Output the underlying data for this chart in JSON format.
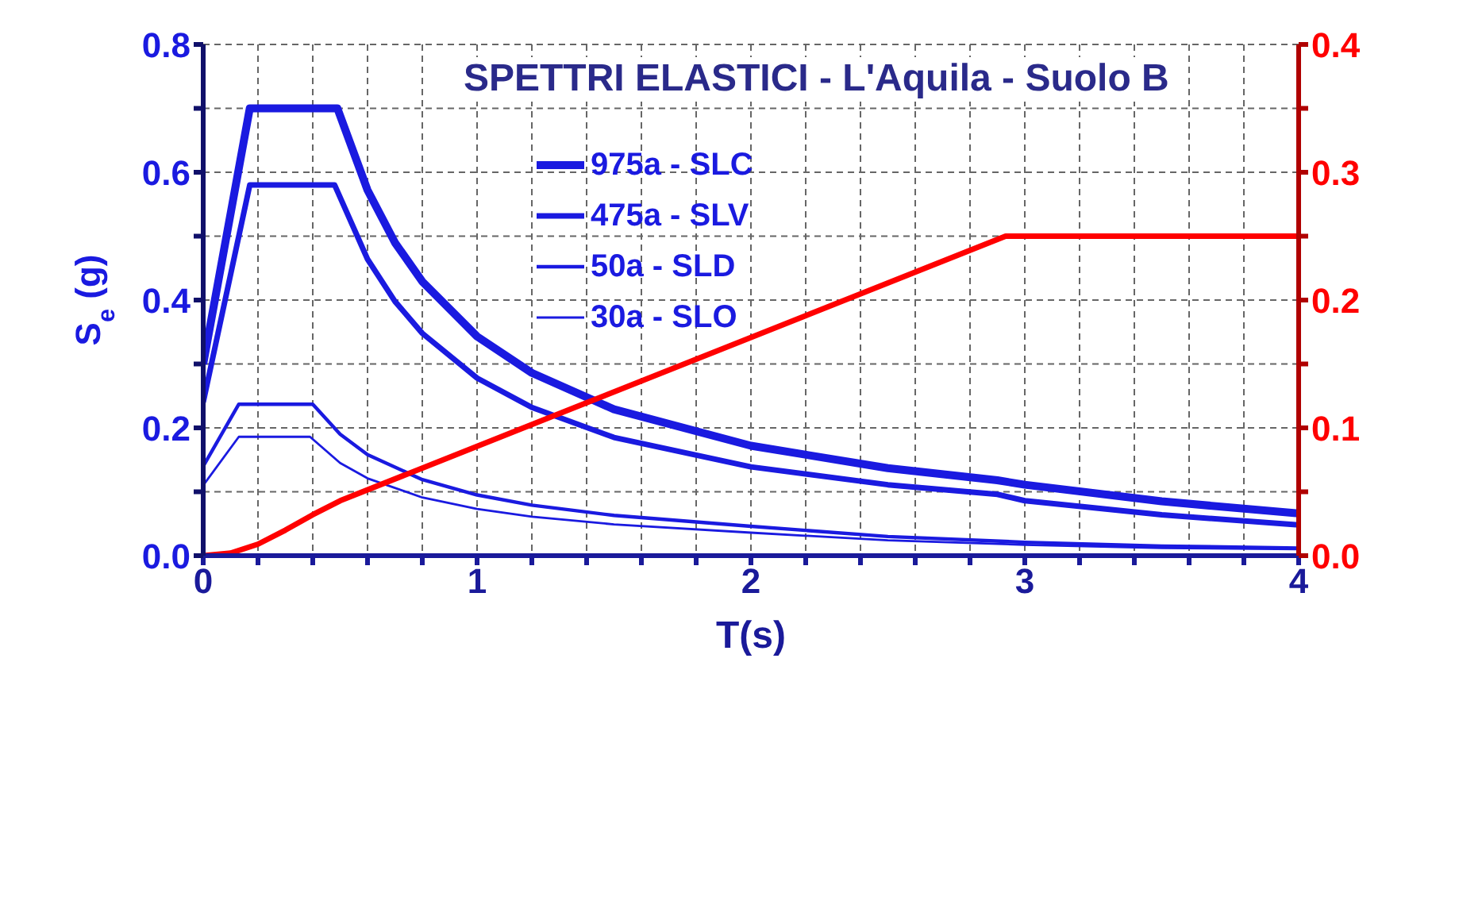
{
  "chart_data": {
    "type": "line",
    "title": "SPETTRI ELASTICI - L'Aquila  - Suolo B",
    "xlabel": "T(s)",
    "ylabel": "S$_{e}$ (g)",
    "xlim": [
      0,
      4
    ],
    "xticks": [
      {
        "value": 0,
        "label": "0"
      },
      {
        "value": 0.2,
        "label": null
      },
      {
        "value": 0.4,
        "label": null
      },
      {
        "value": 0.6,
        "label": null
      },
      {
        "value": 0.8,
        "label": null
      },
      {
        "value": 1,
        "label": "1"
      },
      {
        "value": 1.2,
        "label": null
      },
      {
        "value": 1.4,
        "label": null
      },
      {
        "value": 1.6,
        "label": null
      },
      {
        "value": 1.8,
        "label": null
      },
      {
        "value": 2,
        "label": "2"
      },
      {
        "value": 2.2,
        "label": null
      },
      {
        "value": 2.4,
        "label": null
      },
      {
        "value": 2.6,
        "label": null
      },
      {
        "value": 2.8,
        "label": null
      },
      {
        "value": 3,
        "label": "3"
      },
      {
        "value": 3.2,
        "label": null
      },
      {
        "value": 3.4,
        "label": null
      },
      {
        "value": 3.6,
        "label": null
      },
      {
        "value": 3.8,
        "label": null
      },
      {
        "value": 4,
        "label": "4"
      }
    ],
    "ylim": [
      0,
      0.8
    ],
    "yticks": [
      {
        "value": 0,
        "label": "0.0"
      },
      {
        "value": 0.1,
        "label": null
      },
      {
        "value": 0.2,
        "label": "0.2"
      },
      {
        "value": 0.3,
        "label": null
      },
      {
        "value": 0.4,
        "label": "0.4"
      },
      {
        "value": 0.5,
        "label": null
      },
      {
        "value": 0.6,
        "label": "0.6"
      },
      {
        "value": 0.7,
        "label": null
      },
      {
        "value": 0.8,
        "label": "0.8"
      }
    ],
    "y2lim": [
      0,
      0.4
    ],
    "y2ticks": [
      {
        "value": 0,
        "label": "0.0"
      },
      {
        "value": 0.05,
        "label": null
      },
      {
        "value": 0.1,
        "label": "0.1"
      },
      {
        "value": 0.15,
        "label": null
      },
      {
        "value": 0.2,
        "label": "0.2"
      },
      {
        "value": 0.25,
        "label": null
      },
      {
        "value": 0.3,
        "label": "0.3"
      },
      {
        "value": 0.35,
        "label": null
      },
      {
        "value": 0.4,
        "label": "0.4"
      }
    ],
    "grid": true,
    "legend": "top",
    "marker": "none",
    "line_style": "solid",
    "series": [
      {
        "name": "975a - SLC",
        "color": "#1a1ae0",
        "x": [
          0,
          0.17,
          0.49,
          0.6,
          0.7,
          0.8,
          1,
          1.2,
          1.5,
          2,
          2.5,
          2.9,
          3,
          3.5,
          4
        ],
        "values": [
          0.3,
          0.7,
          0.7,
          0.572,
          0.49,
          0.429,
          0.343,
          0.286,
          0.229,
          0.172,
          0.137,
          0.118,
          0.111,
          0.085,
          0.066
        ]
      },
      {
        "name": "475a - SLV",
        "color": "#1a1ae0",
        "x": [
          0,
          0.17,
          0.48,
          0.6,
          0.7,
          0.8,
          1,
          1.2,
          1.5,
          2,
          2.5,
          2.9,
          3,
          3.5,
          4
        ],
        "values": [
          0.24,
          0.58,
          0.58,
          0.464,
          0.398,
          0.348,
          0.278,
          0.232,
          0.185,
          0.139,
          0.111,
          0.096,
          0.086,
          0.064,
          0.048
        ]
      },
      {
        "name": "50a - SLD",
        "color": "#1a1ae0",
        "x": [
          0,
          0.13,
          0.4,
          0.5,
          0.6,
          0.8,
          1,
          1.2,
          1.5,
          2,
          2.5,
          3,
          3.5,
          4
        ],
        "values": [
          0.14,
          0.237,
          0.237,
          0.19,
          0.158,
          0.119,
          0.095,
          0.079,
          0.063,
          0.046,
          0.03,
          0.021,
          0.015,
          0.012
        ]
      },
      {
        "name": "30a - SLO",
        "color": "#1a1ae0",
        "x": [
          0,
          0.13,
          0.39,
          0.5,
          0.6,
          0.8,
          1,
          1.2,
          1.5,
          2,
          2.5,
          3,
          3.5,
          4
        ],
        "values": [
          0.11,
          0.186,
          0.186,
          0.145,
          0.121,
          0.091,
          0.073,
          0.061,
          0.049,
          0.036,
          0.024,
          0.017,
          0.012,
          0.01
        ]
      },
      {
        "color": "#ff0000",
        "axis": "y2",
        "x": [
          0,
          0.1,
          0.2,
          0.3,
          0.4,
          0.5,
          2.93,
          4
        ],
        "values": [
          0,
          0.002,
          0.009,
          0.02,
          0.032,
          0.043,
          0.25,
          0.25
        ]
      }
    ]
  }
}
